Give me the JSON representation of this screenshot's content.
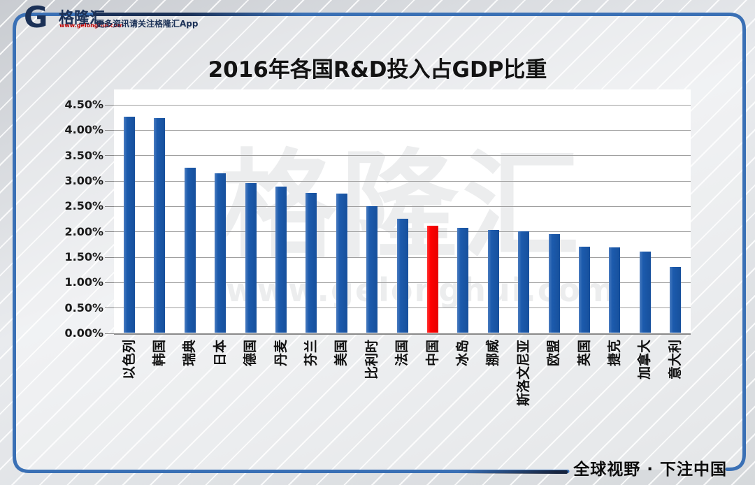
{
  "header": {
    "logo": {
      "icon": "gelonghui-g-icon",
      "brand": "格隆汇",
      "url": "www.gelonghui.com",
      "tagline": "更多资讯请关注格隆汇App"
    }
  },
  "watermark": {
    "brand": "格隆汇",
    "url": "www.gelonghui.com"
  },
  "footer": {
    "slogan": "全球视野 · 下注中国"
  },
  "colors": {
    "bar_blue": "#1C5BAD",
    "bar_red": "#FE0000",
    "frame_blue": "#3A70B5",
    "brand_navy": "#1B3157",
    "url_red": "#C00000",
    "gridline_gray": "#A0A0A0"
  },
  "chart_data": {
    "type": "bar",
    "title": "2016年各国R&D投入占GDP比重",
    "categories": [
      "以色列",
      "韩国",
      "瑞典",
      "日本",
      "德国",
      "丹麦",
      "芬兰",
      "美国",
      "比利时",
      "法国",
      "中国",
      "冰岛",
      "挪威",
      "斯洛文尼亚",
      "欧盟",
      "英国",
      "捷克",
      "加拿大",
      "意大利"
    ],
    "values": [
      4.25,
      4.23,
      3.25,
      3.14,
      2.94,
      2.87,
      2.75,
      2.74,
      2.49,
      2.25,
      2.11,
      2.06,
      2.03,
      2.0,
      1.94,
      1.69,
      1.68,
      1.6,
      1.29
    ],
    "unit": "%",
    "highlight_category": "中国",
    "highlight_color": "#FE0000",
    "bar_color": "#1C5BAD",
    "xlabel": "",
    "ylabel": "",
    "ylim": [
      0,
      4.5
    ],
    "ytick_step": 0.5,
    "ytick_labels": [
      "4.50%",
      "4.00%",
      "3.50%",
      "3.00%",
      "2.50%",
      "2.00%",
      "1.50%",
      "1.00%",
      "0.50%",
      "0.00%"
    ],
    "grid": true,
    "legend": "none",
    "bar_orientation": "vertical",
    "xlabel_rotation": -90
  }
}
